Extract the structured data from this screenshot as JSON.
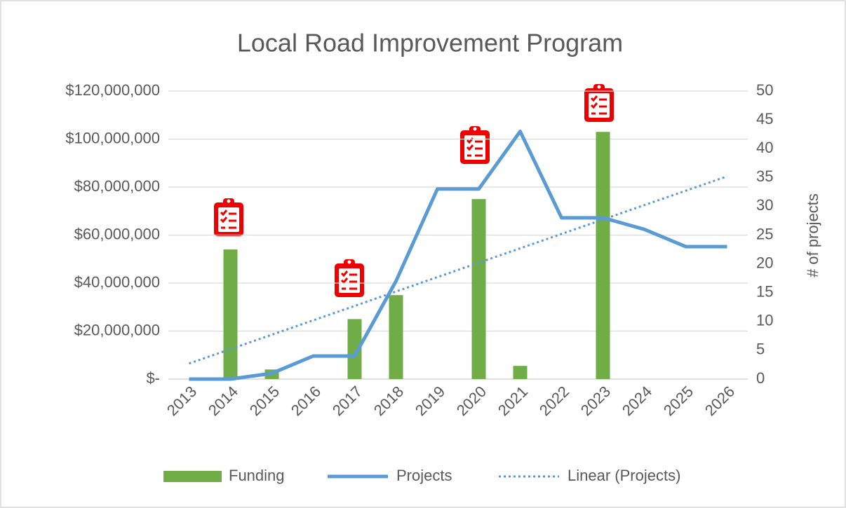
{
  "chart_data": {
    "type": "combo",
    "title": "Local Road Improvement Program",
    "y2_label": "# of projects",
    "categories": [
      "2013",
      "2014",
      "2015",
      "2016",
      "2017",
      "2018",
      "2019",
      "2020",
      "2021",
      "2022",
      "2023",
      "2024",
      "2025",
      "2026"
    ],
    "series": [
      {
        "name": "Funding",
        "type": "bar",
        "color": "#70ad47",
        "axis": "y",
        "values": [
          0,
          54000000,
          4000000,
          0,
          25000000,
          35000000,
          0,
          75000000,
          5500000,
          0,
          103000000,
          0,
          0,
          0
        ]
      },
      {
        "name": "Projects",
        "type": "line",
        "color": "#5b9bd5",
        "axis": "y2",
        "values": [
          0,
          0,
          1,
          4,
          4,
          17,
          33,
          33,
          43,
          28,
          28,
          26,
          23,
          23
        ]
      },
      {
        "name": "Linear (Projects)",
        "type": "trend",
        "color": "#5b9bd5",
        "axis": "y2",
        "values": [
          2.7,
          5.2,
          7.7,
          10.2,
          12.7,
          15.2,
          17.7,
          20.2,
          22.7,
          25.2,
          27.7,
          30.2,
          32.7,
          35.2
        ]
      }
    ],
    "ylim": [
      0,
      120000000
    ],
    "yticks": [
      {
        "value": 0,
        "label": "$-"
      },
      {
        "value": 20000000,
        "label": "$20,000,000"
      },
      {
        "value": 40000000,
        "label": "$40,000,000"
      },
      {
        "value": 60000000,
        "label": "$60,000,000"
      },
      {
        "value": 80000000,
        "label": "$80,000,000"
      },
      {
        "value": 100000000,
        "label": "$100,000,000"
      },
      {
        "value": 120000000,
        "label": "$120,000,000"
      }
    ],
    "y2lim": [
      0,
      50
    ],
    "y2ticks": [
      0,
      5,
      10,
      15,
      20,
      25,
      30,
      35,
      40,
      45,
      50
    ],
    "grid": true,
    "legend": "bottom"
  }
}
